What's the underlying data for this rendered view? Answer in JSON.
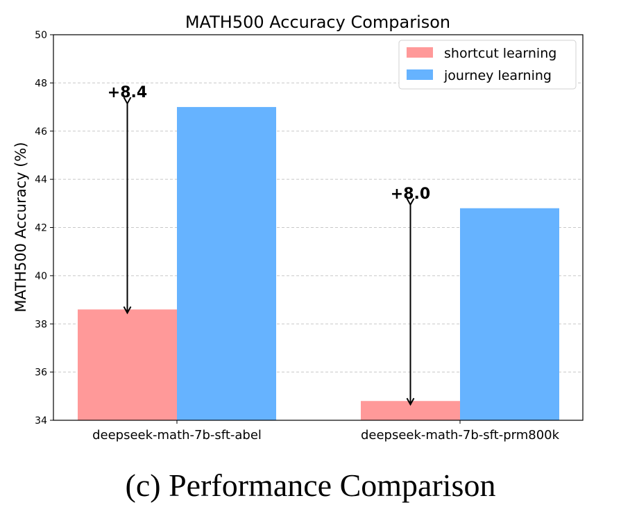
{
  "chart_data": {
    "type": "bar",
    "title": "MATH500 Accuracy Comparison",
    "xlabel": "",
    "ylabel": "MATH500 Accuracy (%)",
    "ylim": [
      34,
      50
    ],
    "yticks": [
      34,
      36,
      38,
      40,
      42,
      44,
      46,
      48,
      50
    ],
    "grid": true,
    "legend_position": "top-right",
    "categories": [
      "deepseek-math-7b-sft-abel",
      "deepseek-math-7b-sft-prm800k"
    ],
    "series": [
      {
        "name": "shortcut learning",
        "color": "#ff9999",
        "values": [
          38.6,
          34.8
        ]
      },
      {
        "name": "journey learning",
        "color": "#66b3ff",
        "values": [
          47.0,
          42.8
        ]
      }
    ],
    "annotations": [
      {
        "text": "+8.4",
        "category": "deepseek-math-7b-sft-abel",
        "from": 38.6,
        "to": 47.0
      },
      {
        "text": "+8.0",
        "category": "deepseek-math-7b-sft-prm800k",
        "from": 34.8,
        "to": 42.8
      }
    ]
  },
  "caption": "(c) Performance Comparison"
}
